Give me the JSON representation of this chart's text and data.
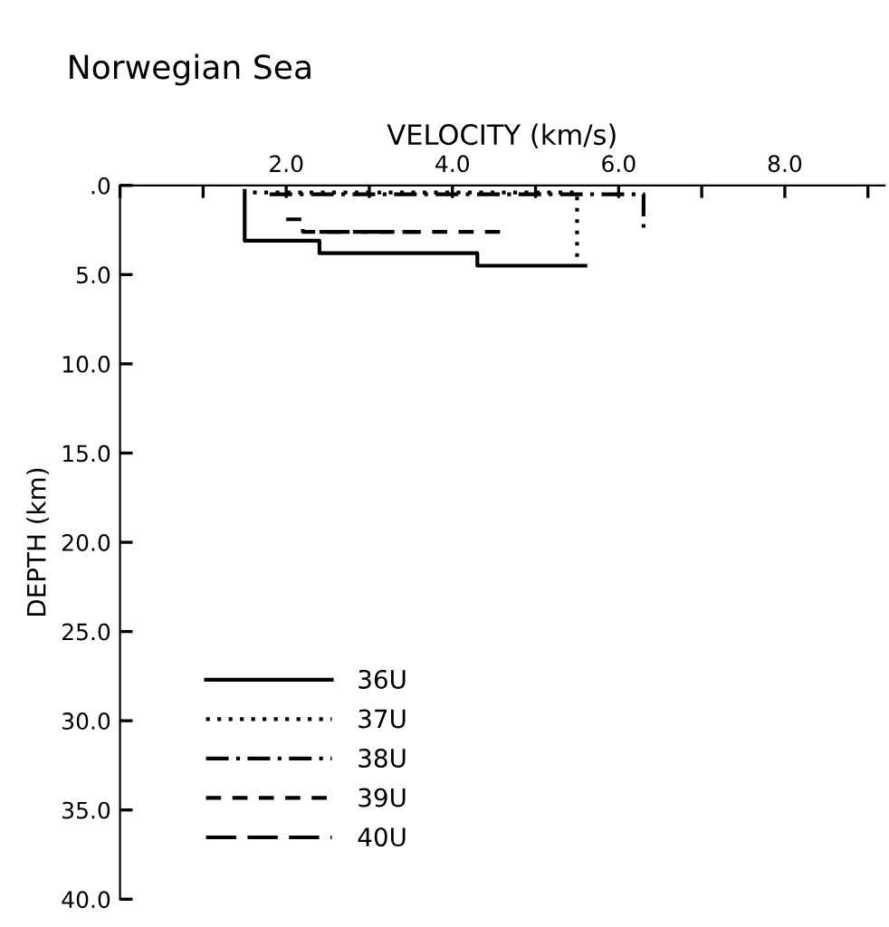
{
  "chart_data": {
    "type": "line",
    "title": "Norwegian Sea",
    "xlabel": "VELOCITY (km/s)",
    "ylabel": "DEPTH (km)",
    "xlim": [
      0,
      9.2
    ],
    "ylim": [
      40,
      0
    ],
    "xticks": [
      {
        "value": 0,
        "label": null
      },
      {
        "value": 1,
        "label": null
      },
      {
        "value": 2,
        "label": "2.0"
      },
      {
        "value": 3,
        "label": null
      },
      {
        "value": 4,
        "label": "4.0"
      },
      {
        "value": 5,
        "label": null
      },
      {
        "value": 6,
        "label": "6.0"
      },
      {
        "value": 7,
        "label": null
      },
      {
        "value": 8,
        "label": "8.0"
      },
      {
        "value": 9,
        "label": null
      }
    ],
    "yticks": [
      {
        "value": 0,
        "label": ".0"
      },
      {
        "value": 5,
        "label": "5.0"
      },
      {
        "value": 10,
        "label": "10.0"
      },
      {
        "value": 15,
        "label": "15.0"
      },
      {
        "value": 20,
        "label": "20.0"
      },
      {
        "value": 25,
        "label": "25.0"
      },
      {
        "value": 30,
        "label": "30.0"
      },
      {
        "value": 35,
        "label": "35.0"
      },
      {
        "value": 40,
        "label": "40.0"
      }
    ],
    "legend": "bottom left",
    "grid": false,
    "marker": "none",
    "series": [
      {
        "name": "36U",
        "color": "#000000",
        "line_style": "solid",
        "x": [
          1.5,
          1.5,
          2.4,
          2.4,
          4.3,
          4.3,
          5.6
        ],
        "values": [
          0.3,
          3.1,
          3.1,
          3.8,
          3.8,
          4.5,
          4.5
        ]
      },
      {
        "name": "37U",
        "color": "#000000",
        "line_style": "dotted",
        "x": [
          1.6,
          5.5,
          5.5
        ],
        "values": [
          0.4,
          0.4,
          4.5
        ]
      },
      {
        "name": "38U",
        "color": "#000000",
        "line_style": "dashdot",
        "x": [
          1.8,
          6.3,
          6.3
        ],
        "values": [
          0.5,
          0.5,
          2.6
        ]
      },
      {
        "name": "39U",
        "color": "#000000",
        "line_style": "dashed",
        "x": [
          2.0,
          2.2,
          2.2,
          4.6
        ],
        "values": [
          1.9,
          1.9,
          2.6,
          2.6
        ]
      },
      {
        "name": "40U",
        "color": "#000000",
        "line_style": "longdash",
        "x": [
          2.4,
          3.6
        ],
        "values": [
          2.6,
          2.6
        ]
      }
    ]
  }
}
